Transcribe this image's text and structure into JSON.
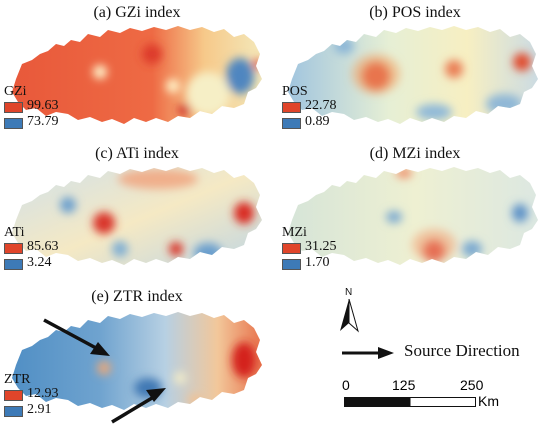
{
  "panels": [
    {
      "id": "a",
      "title": "(a) GZi index",
      "legend_label": "GZi",
      "max": "99.63",
      "min": "73.79"
    },
    {
      "id": "b",
      "title": "(b) POS index",
      "legend_label": "POS",
      "max": "22.78",
      "min": "0.89"
    },
    {
      "id": "c",
      "title": "(c) ATi index",
      "legend_label": "ATi",
      "max": "85.63",
      "min": "3.24"
    },
    {
      "id": "d",
      "title": "(d) MZi index",
      "legend_label": "MZi",
      "max": "31.25",
      "min": "1.70"
    },
    {
      "id": "e",
      "title": "(e) ZTR index",
      "legend_label": "ZTR",
      "max": "12.93",
      "min": "2.91"
    }
  ],
  "colors": {
    "high": "#d7191c",
    "mid": "#ffffbf",
    "low": "#2c7bb6"
  },
  "north_arrow": {
    "label": "N",
    "icon": "north-arrow-icon"
  },
  "source_direction": {
    "label": "Source Direction",
    "icon": "arrow-right-icon"
  },
  "scale_bar": {
    "ticks": [
      "0",
      "125",
      "250"
    ],
    "unit": "Km"
  }
}
